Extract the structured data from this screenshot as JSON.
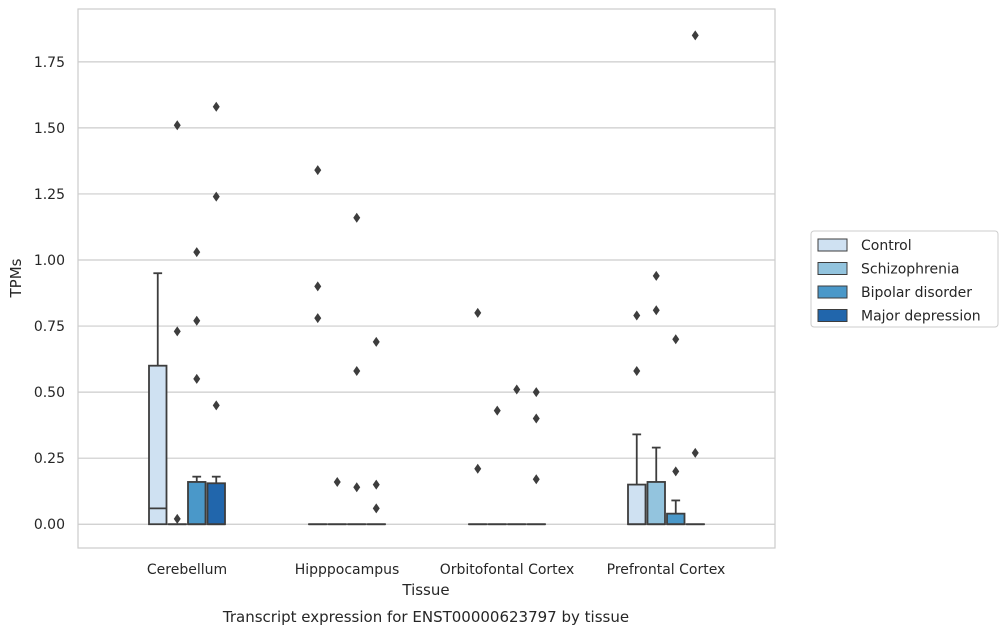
{
  "chart_data": {
    "type": "box",
    "title": "Transcript expression for ENST00000623797 by tissue",
    "xlabel": "Tissue",
    "ylabel": "TPMs",
    "ylim": [
      -0.09,
      1.95
    ],
    "yticks": [
      0.0,
      0.25,
      0.5,
      0.75,
      1.0,
      1.25,
      1.5,
      1.75
    ],
    "ytick_labels": [
      "0.00",
      "0.25",
      "0.50",
      "0.75",
      "1.00",
      "1.25",
      "1.50",
      "1.75"
    ],
    "grid": "horizontal",
    "legend_position": "right",
    "categories": [
      "Cerebellum",
      "Hipppocampus",
      "Orbitofontal Cortex",
      "Prefrontal Cortex"
    ],
    "series": [
      {
        "name": "Control",
        "color": "#cfe1f2",
        "boxes": [
          {
            "q1": 0,
            "median": 0.06,
            "q3": 0.6,
            "whisker_low": 0,
            "whisker_high": 0.95,
            "outliers": []
          },
          {
            "q1": 0,
            "median": 0,
            "q3": 0,
            "whisker_low": 0,
            "whisker_high": 0,
            "outliers": [
              0.78,
              0.9,
              1.34
            ]
          },
          {
            "q1": 0,
            "median": 0,
            "q3": 0,
            "whisker_low": 0,
            "whisker_high": 0,
            "outliers": [
              0.21,
              0.8
            ]
          },
          {
            "q1": 0,
            "median": 0,
            "q3": 0.15,
            "whisker_low": 0,
            "whisker_high": 0.34,
            "outliers": [
              0.58,
              0.79
            ]
          }
        ]
      },
      {
        "name": "Schizophrenia",
        "color": "#93c4de",
        "boxes": [
          {
            "q1": 0,
            "median": 0,
            "q3": 0,
            "whisker_low": 0,
            "whisker_high": 0,
            "outliers": [
              0.02,
              0.73,
              1.51
            ]
          },
          {
            "q1": 0,
            "median": 0,
            "q3": 0,
            "whisker_low": 0,
            "whisker_high": 0,
            "outliers": [
              0.16
            ]
          },
          {
            "q1": 0,
            "median": 0,
            "q3": 0,
            "whisker_low": 0,
            "whisker_high": 0,
            "outliers": [
              0.43
            ]
          },
          {
            "q1": 0,
            "median": 0,
            "q3": 0.16,
            "whisker_low": 0,
            "whisker_high": 0.29,
            "outliers": [
              0.81,
              0.94
            ]
          }
        ]
      },
      {
        "name": "Bipolar disorder",
        "color": "#4a98c9",
        "boxes": [
          {
            "q1": 0,
            "median": 0,
            "q3": 0.16,
            "whisker_low": 0,
            "whisker_high": 0.18,
            "outliers": [
              0.55,
              0.77,
              1.03
            ]
          },
          {
            "q1": 0,
            "median": 0,
            "q3": 0,
            "whisker_low": 0,
            "whisker_high": 0,
            "outliers": [
              0.14,
              0.58,
              1.16
            ]
          },
          {
            "q1": 0,
            "median": 0,
            "q3": 0,
            "whisker_low": 0,
            "whisker_high": 0,
            "outliers": [
              0.51
            ]
          },
          {
            "q1": 0,
            "median": 0,
            "q3": 0.04,
            "whisker_low": 0,
            "whisker_high": 0.09,
            "outliers": [
              0.2,
              0.7
            ]
          }
        ]
      },
      {
        "name": "Major depression",
        "color": "#2166ac",
        "boxes": [
          {
            "q1": 0,
            "median": 0,
            "q3": 0.155,
            "whisker_low": 0,
            "whisker_high": 0.18,
            "outliers": [
              0.45,
              1.24,
              1.58
            ]
          },
          {
            "q1": 0,
            "median": 0,
            "q3": 0,
            "whisker_low": 0,
            "whisker_high": 0,
            "outliers": [
              0.06,
              0.15,
              0.69
            ]
          },
          {
            "q1": 0,
            "median": 0,
            "q3": 0,
            "whisker_low": 0,
            "whisker_high": 0,
            "outliers": [
              0.17,
              0.4,
              0.5
            ]
          },
          {
            "q1": 0,
            "median": 0,
            "q3": 0,
            "whisker_low": 0,
            "whisker_high": 0,
            "outliers": [
              0.27,
              1.85
            ]
          }
        ]
      }
    ]
  }
}
